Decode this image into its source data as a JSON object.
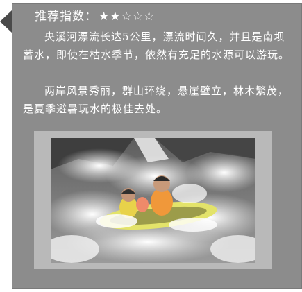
{
  "rating": {
    "label": "推荐指数：",
    "stars": "★★☆☆☆",
    "value": 2,
    "max": 5
  },
  "paragraphs": [
    "央溪河漂流长达5公里，漂流时间久，并且是南坝蓄水，即使在枯水季节，依然有充足的水源可以游玩。",
    "两岸风景秀丽，群山环绕，悬崖壁立，林木繁茂，是夏季避暑玩水的极佳去处。"
  ],
  "colors": {
    "panel": "#8c8c8c",
    "frame": "#b9b9b9",
    "text": "#ffffff",
    "notch": "#4a4a4a"
  }
}
